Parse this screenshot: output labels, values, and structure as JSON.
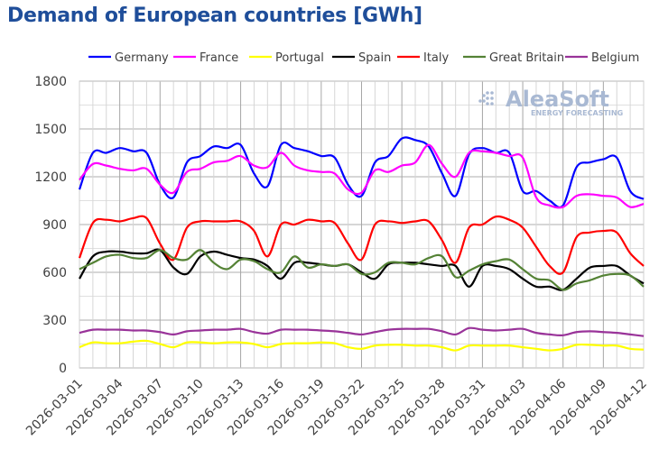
{
  "chart_data": {
    "type": "line",
    "title": "Demand of European countries [GWh]",
    "xlabel": "",
    "ylabel": "",
    "ylim": [
      0,
      1800
    ],
    "yticks": [
      "0",
      "300",
      "600",
      "900",
      "1200",
      "1500",
      "1800"
    ],
    "grid": true,
    "legend_position": "top",
    "watermark": {
      "name": "AleaSoft",
      "tagline": "ENERGY FORECASTING"
    },
    "x": [
      "2026-03-01",
      "2026-03-02",
      "2026-03-03",
      "2026-03-04",
      "2026-03-05",
      "2026-03-06",
      "2026-03-07",
      "2026-03-08",
      "2026-03-09",
      "2026-03-10",
      "2026-03-11",
      "2026-03-12",
      "2026-03-13",
      "2026-03-14",
      "2026-03-15",
      "2026-03-16",
      "2026-03-17",
      "2026-03-18",
      "2026-03-19",
      "2026-03-20",
      "2026-03-21",
      "2026-03-22",
      "2026-03-23",
      "2026-03-24",
      "2026-03-25",
      "2026-03-26",
      "2026-03-27",
      "2026-03-28",
      "2026-03-29",
      "2026-03-30",
      "2026-03-31",
      "2026-04-01",
      "2026-04-02",
      "2026-04-03",
      "2026-04-04",
      "2026-04-05",
      "2026-04-06",
      "2026-04-07",
      "2026-04-08",
      "2026-04-09",
      "2026-04-10",
      "2026-04-11",
      "2026-04-12"
    ],
    "xticks": [
      "2026-03-01",
      "2026-03-04",
      "2026-03-07",
      "2026-03-10",
      "2026-03-13",
      "2026-03-16",
      "2026-03-19",
      "2026-03-22",
      "2026-03-25",
      "2026-03-28",
      "2026-03-31",
      "2026-04-03",
      "2026-04-06",
      "2026-04-09",
      "2026-04-12"
    ],
    "series": [
      {
        "name": "Germany",
        "color": "#0000ff",
        "values": [
          1120,
          1350,
          1350,
          1380,
          1360,
          1350,
          1150,
          1070,
          1290,
          1330,
          1390,
          1380,
          1400,
          1220,
          1140,
          1400,
          1380,
          1360,
          1330,
          1320,
          1150,
          1080,
          1290,
          1330,
          1440,
          1430,
          1390,
          1220,
          1080,
          1340,
          1380,
          1350,
          1350,
          1110,
          1110,
          1050,
          1020,
          1260,
          1290,
          1310,
          1320,
          1110,
          1060
        ]
      },
      {
        "name": "France",
        "color": "#ff00ff",
        "values": [
          1180,
          1280,
          1270,
          1250,
          1240,
          1250,
          1150,
          1100,
          1230,
          1250,
          1290,
          1300,
          1330,
          1270,
          1260,
          1350,
          1270,
          1240,
          1230,
          1220,
          1120,
          1100,
          1240,
          1230,
          1270,
          1290,
          1400,
          1280,
          1200,
          1350,
          1360,
          1350,
          1330,
          1320,
          1070,
          1020,
          1010,
          1080,
          1090,
          1080,
          1070,
          1010,
          1030
        ]
      },
      {
        "name": "Portugal",
        "color": "#ffff00",
        "values": [
          130,
          160,
          155,
          155,
          165,
          170,
          150,
          130,
          160,
          160,
          155,
          160,
          160,
          150,
          130,
          150,
          155,
          155,
          160,
          155,
          130,
          120,
          140,
          145,
          145,
          140,
          140,
          130,
          110,
          140,
          140,
          140,
          140,
          130,
          120,
          110,
          120,
          145,
          145,
          140,
          140,
          120,
          115
        ]
      },
      {
        "name": "Spain",
        "color": "#000000",
        "values": [
          560,
          700,
          730,
          730,
          720,
          720,
          740,
          630,
          590,
          700,
          730,
          710,
          690,
          680,
          640,
          560,
          660,
          660,
          650,
          640,
          650,
          600,
          560,
          650,
          660,
          660,
          650,
          640,
          640,
          510,
          640,
          640,
          620,
          560,
          510,
          510,
          490,
          560,
          630,
          640,
          640,
          580,
          530
        ]
      },
      {
        "name": "Italy",
        "color": "#ff0000",
        "values": [
          690,
          910,
          930,
          920,
          940,
          940,
          780,
          680,
          880,
          920,
          920,
          920,
          920,
          860,
          700,
          900,
          900,
          930,
          920,
          910,
          780,
          680,
          900,
          920,
          910,
          920,
          920,
          800,
          660,
          880,
          900,
          950,
          930,
          880,
          760,
          640,
          600,
          820,
          850,
          860,
          850,
          720,
          640
        ]
      },
      {
        "name": "Great Britain",
        "color": "#548235",
        "values": [
          620,
          660,
          700,
          710,
          690,
          690,
          740,
          690,
          680,
          740,
          660,
          620,
          680,
          670,
          620,
          600,
          700,
          630,
          650,
          640,
          650,
          590,
          600,
          660,
          660,
          650,
          690,
          700,
          570,
          610,
          650,
          670,
          680,
          620,
          560,
          550,
          490,
          530,
          550,
          580,
          590,
          580,
          510
        ]
      },
      {
        "name": "Belgium",
        "color": "#993399",
        "values": [
          220,
          240,
          240,
          240,
          235,
          235,
          225,
          210,
          230,
          235,
          240,
          240,
          245,
          225,
          215,
          240,
          240,
          240,
          235,
          230,
          220,
          210,
          225,
          240,
          245,
          245,
          245,
          230,
          210,
          250,
          240,
          235,
          240,
          245,
          220,
          210,
          205,
          225,
          230,
          225,
          220,
          210,
          200
        ]
      }
    ]
  }
}
